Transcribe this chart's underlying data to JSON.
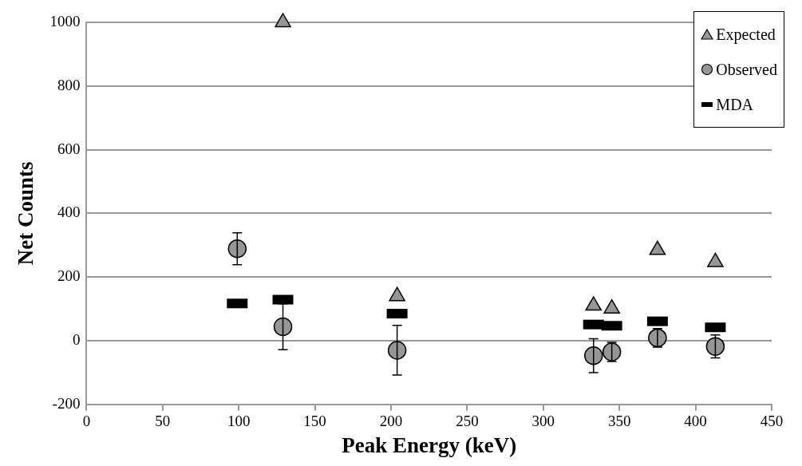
{
  "chart_data": {
    "type": "scatter",
    "xlabel": "Peak Energy (keV)",
    "ylabel": "Net Counts",
    "xlim": [
      0,
      450
    ],
    "xticks": [
      0,
      50,
      100,
      150,
      200,
      250,
      300,
      350,
      400,
      450
    ],
    "ylim": [
      -200,
      1000
    ],
    "yticks": [
      -200,
      0,
      200,
      400,
      600,
      800,
      1000
    ],
    "grid": "y",
    "legend": "top right",
    "series": [
      {
        "name": "Expected",
        "color": "#969696",
        "marker": "triangle",
        "x": [
          129,
          204,
          333,
          345,
          375,
          413
        ],
        "values": [
          1000,
          140,
          110,
          101,
          285,
          247
        ]
      },
      {
        "name": "Observed",
        "color": "#969696",
        "marker": "circle",
        "x": [
          99,
          129,
          204,
          333,
          345,
          375,
          413
        ],
        "values": [
          289,
          44,
          -30,
          -47,
          -35,
          9,
          -18
        ],
        "errors": [
          50,
          72,
          78,
          53,
          30,
          29,
          36
        ]
      },
      {
        "name": "MDA",
        "color": "#000000",
        "x": [
          99,
          129,
          204,
          333,
          345,
          375,
          413
        ],
        "values": [
          117,
          129,
          85,
          51,
          47,
          61,
          42
        ]
      }
    ]
  }
}
